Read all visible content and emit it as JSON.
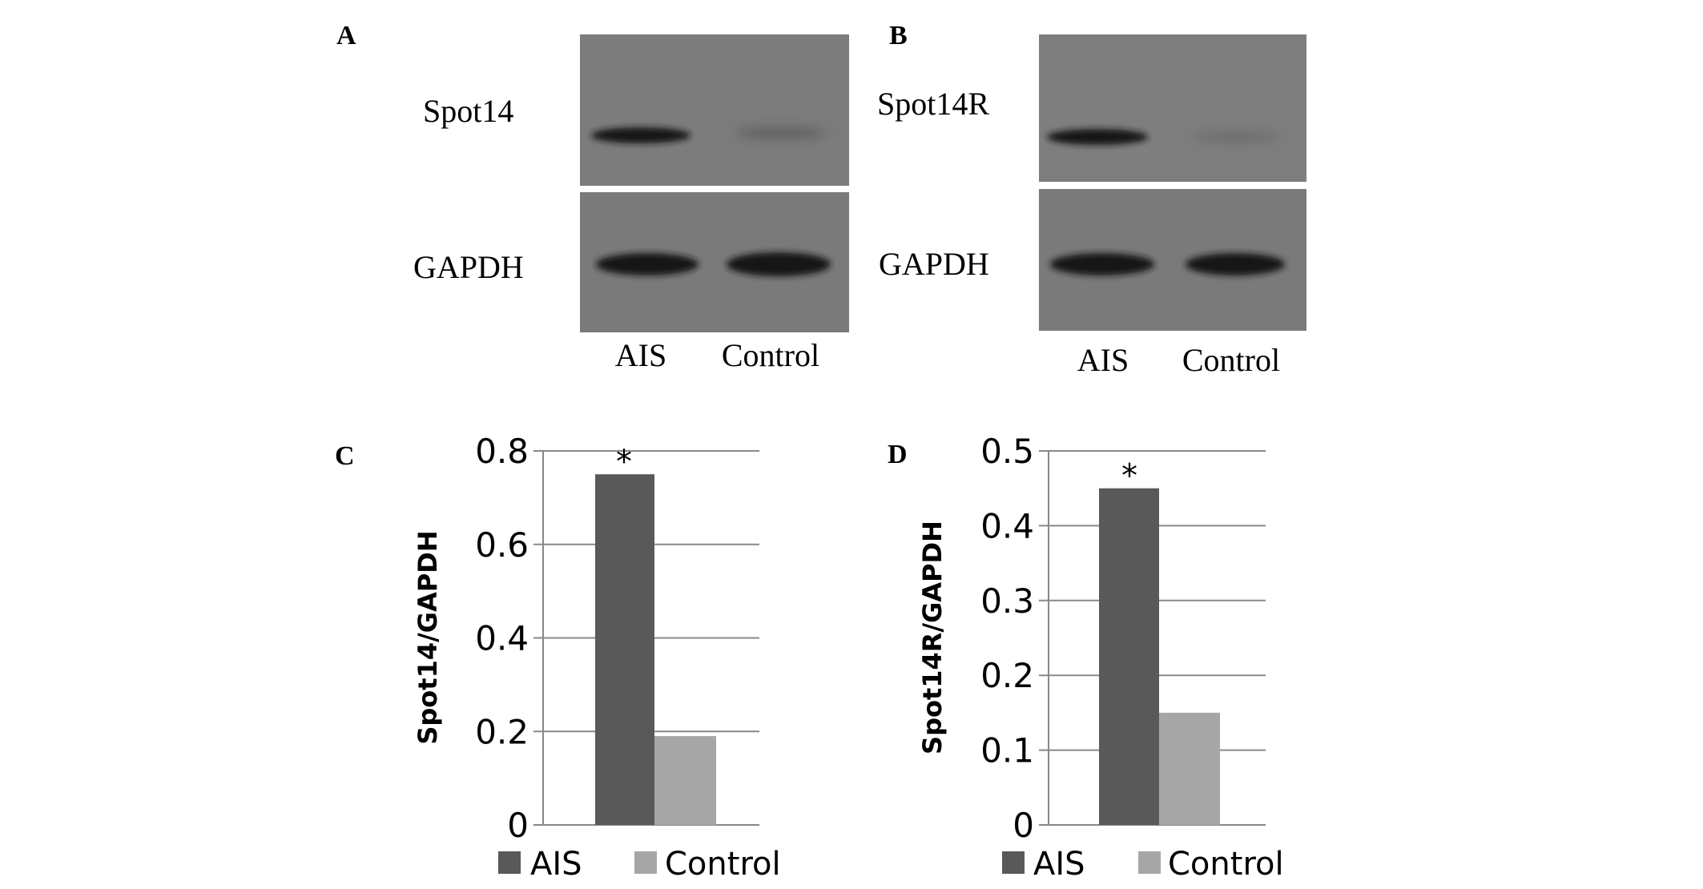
{
  "figure": {
    "panels": [
      {
        "letter": "A",
        "target_label": "Spot14",
        "loading_label": "GAPDH",
        "lanes": [
          "AIS",
          "Control"
        ]
      },
      {
        "letter": "B",
        "target_label": "Spot14R",
        "loading_label": "GAPDH",
        "lanes": [
          "AIS",
          "Control"
        ]
      },
      {
        "letter": "C"
      },
      {
        "letter": "D"
      }
    ],
    "colors": {
      "ais": "#595959",
      "control": "#a6a6a6",
      "grid": "#888888",
      "blot_bg": "#7c7c7c"
    }
  },
  "chart_data": [
    {
      "type": "bar",
      "ylabel": "Spot14/GAPDH",
      "categories": [
        "AIS",
        "Control"
      ],
      "values": [
        0.75,
        0.19
      ],
      "ylim": [
        0,
        0.8
      ],
      "yticks": [
        "0",
        "0.2",
        "0.4",
        "0.6",
        "0.8"
      ],
      "grid": true,
      "annotations": [
        "*",
        ""
      ],
      "legend": {
        "placement": "bottom",
        "entries": [
          "AIS",
          "Control"
        ]
      }
    },
    {
      "type": "bar",
      "ylabel": "Spot14R/GAPDH",
      "categories": [
        "AIS",
        "Control"
      ],
      "values": [
        0.45,
        0.15
      ],
      "ylim": [
        0,
        0.5
      ],
      "yticks": [
        "0",
        "0.1",
        "0.2",
        "0.3",
        "0.4",
        "0.5"
      ],
      "grid": true,
      "annotations": [
        "*",
        ""
      ],
      "legend": {
        "placement": "bottom",
        "entries": [
          "AIS",
          "Control"
        ]
      }
    }
  ]
}
